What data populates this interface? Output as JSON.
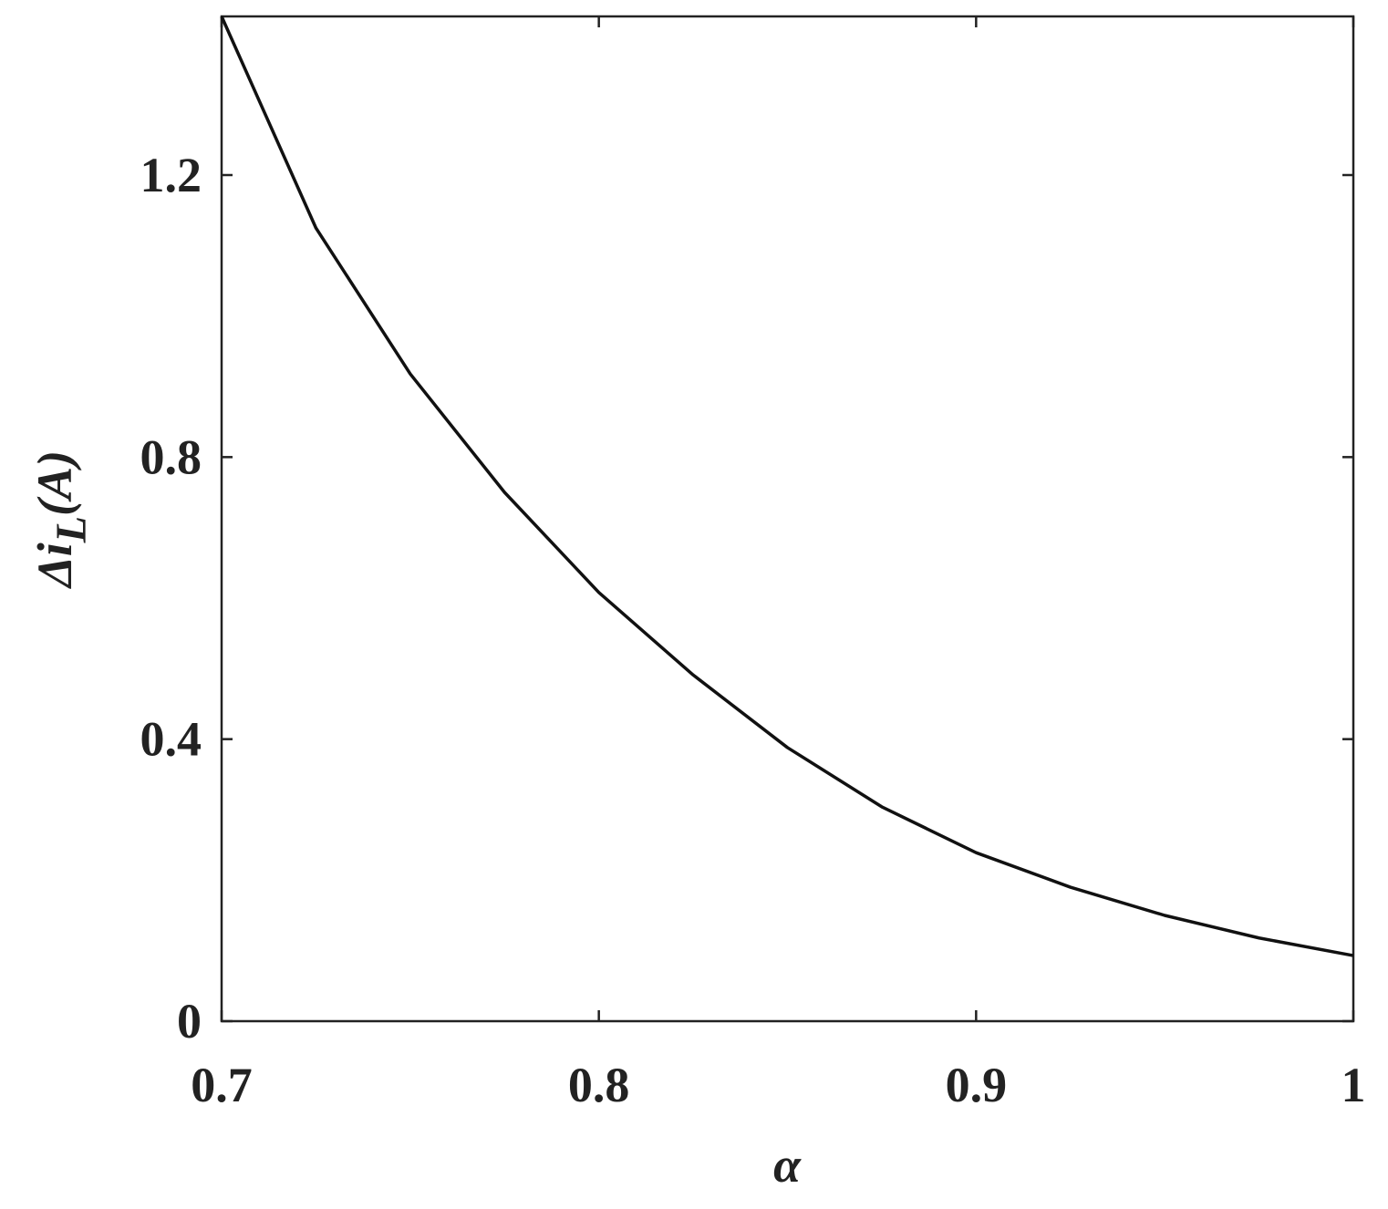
{
  "chart_data": {
    "type": "line",
    "xlabel": "α",
    "ylabel": {
      "main": "Δi",
      "sub": "L",
      "unit": "(A)"
    },
    "x": [
      0.7,
      0.725,
      0.75,
      0.775,
      0.8,
      0.825,
      0.85,
      0.875,
      0.9,
      0.925,
      0.95,
      0.975,
      1.0
    ],
    "series": [
      {
        "color": "#111111",
        "values": [
          1.425,
          1.125,
          0.918,
          0.75,
          0.608,
          0.491,
          0.388,
          0.304,
          0.239,
          0.19,
          0.15,
          0.118,
          0.093
        ]
      }
    ],
    "xlim": [
      0.7,
      1
    ],
    "xticks": [
      0.7,
      0.8,
      0.9,
      1
    ],
    "ylim": [
      0,
      1.425
    ],
    "yticks": [
      0,
      0.4,
      0.8,
      1.2
    ],
    "grid": false
  }
}
